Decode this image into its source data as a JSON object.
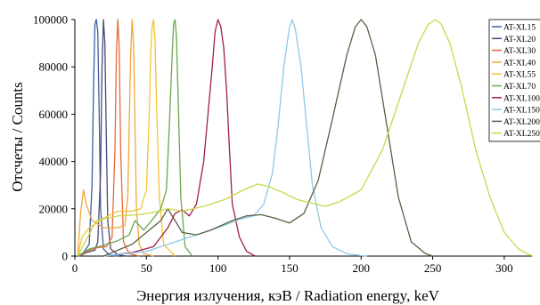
{
  "chart_data": {
    "type": "line",
    "xlabel": "Энергия излучения, кэВ / Radiation energy, keV",
    "ylabel": "Отсчеты  / Counts",
    "xlim": [
      0,
      320
    ],
    "ylim": [
      0,
      100000
    ],
    "x_ticks": [
      0,
      50,
      100,
      150,
      200,
      250,
      300
    ],
    "y_ticks": [
      0,
      20000,
      40000,
      60000,
      80000,
      100000
    ],
    "x_tick_labels": [
      "0",
      "50",
      "100",
      "150",
      "200",
      "250",
      "300"
    ],
    "y_tick_labels": [
      "0",
      "20000",
      "40000",
      "60000",
      "80000",
      "100000"
    ],
    "grid": false,
    "legend_position": "right",
    "series": [
      {
        "name": "AT-XL15",
        "color": "#3b5ea8",
        "x": [
          2,
          6,
          10,
          12,
          13,
          14,
          15,
          16,
          17,
          18,
          20,
          24,
          30
        ],
        "y": [
          0,
          1500,
          5000,
          30000,
          70000,
          98000,
          100000,
          95000,
          60000,
          20000,
          3000,
          500,
          0
        ]
      },
      {
        "name": "AT-XL20",
        "color": "#4a4a7a",
        "x": [
          3,
          8,
          14,
          16,
          18,
          19,
          20,
          21,
          22,
          23,
          25,
          30,
          36
        ],
        "y": [
          0,
          1500,
          2500,
          6000,
          35000,
          80000,
          100000,
          90000,
          50000,
          15000,
          3000,
          600,
          0
        ]
      },
      {
        "name": "AT-XL30",
        "color": "#e8693a",
        "x": [
          3,
          8,
          15,
          22,
          26,
          28,
          29,
          30,
          31,
          32,
          34,
          38,
          45
        ],
        "y": [
          0,
          2000,
          3500,
          4000,
          8000,
          45000,
          85000,
          100000,
          88000,
          45000,
          6000,
          1000,
          0
        ]
      },
      {
        "name": "AT-XL40",
        "color": "#f2a73a",
        "x": [
          2,
          4,
          6,
          8,
          12,
          20,
          30,
          35,
          37,
          38,
          39,
          40,
          41,
          42,
          43,
          45,
          48,
          55
        ],
        "y": [
          0,
          18000,
          28000,
          22000,
          15000,
          12000,
          12000,
          13000,
          25000,
          55000,
          85000,
          100000,
          90000,
          55000,
          20000,
          5000,
          1000,
          0
        ]
      },
      {
        "name": "AT-XL55",
        "color": "#f4c430",
        "x": [
          2,
          5,
          10,
          20,
          30,
          40,
          46,
          50,
          52,
          53,
          54,
          55,
          56,
          57,
          59,
          62,
          70
        ],
        "y": [
          0,
          8000,
          12000,
          16000,
          19000,
          19000,
          20000,
          28000,
          60000,
          85000,
          97000,
          100000,
          92000,
          65000,
          25000,
          5000,
          0
        ]
      },
      {
        "name": "AT-XL70",
        "color": "#6aa84f",
        "x": [
          2,
          10,
          20,
          30,
          38,
          42,
          48,
          55,
          60,
          64,
          66,
          68,
          69,
          70,
          71,
          72,
          74,
          77,
          82
        ],
        "y": [
          0,
          3000,
          4500,
          6500,
          9000,
          15000,
          11000,
          16000,
          20000,
          28000,
          55000,
          85000,
          98000,
          100000,
          93000,
          70000,
          25000,
          4000,
          0
        ]
      },
      {
        "name": "AT-XL100",
        "color": "#a0204a",
        "x": [
          20,
          40,
          55,
          65,
          70,
          75,
          80,
          85,
          90,
          93,
          96,
          98,
          100,
          102,
          104,
          106,
          108,
          110,
          115,
          120,
          126
        ],
        "y": [
          0,
          1500,
          4000,
          12000,
          18000,
          19500,
          17000,
          22000,
          40000,
          60000,
          80000,
          95000,
          100000,
          97000,
          88000,
          70000,
          45000,
          22000,
          8000,
          2000,
          0
        ]
      },
      {
        "name": "AT-XL150",
        "color": "#8ec9e8",
        "x": [
          20,
          50,
          80,
          100,
          115,
          125,
          132,
          138,
          142,
          146,
          150,
          152,
          154,
          158,
          162,
          166,
          172,
          180,
          190,
          200,
          204
        ],
        "y": [
          0,
          2000,
          8000,
          12000,
          15500,
          17000,
          22000,
          35000,
          55000,
          80000,
          97000,
          100000,
          96000,
          80000,
          55000,
          30000,
          12000,
          4000,
          1000,
          200,
          0
        ]
      },
      {
        "name": "AT-XL200",
        "color": "#5a5f40",
        "x": [
          20,
          40,
          60,
          65,
          75,
          85,
          95,
          110,
          120,
          130,
          140,
          150,
          160,
          170,
          180,
          190,
          196,
          200,
          204,
          210,
          218,
          226,
          235,
          245,
          250
        ],
        "y": [
          0,
          5000,
          15000,
          20000,
          10000,
          9000,
          11000,
          15000,
          17000,
          17500,
          16000,
          14000,
          18000,
          32000,
          58000,
          85000,
          97000,
          100000,
          97000,
          85000,
          55000,
          25000,
          6000,
          1000,
          0
        ]
      },
      {
        "name": "AT-XL250",
        "color": "#c8d84a",
        "x": [
          2,
          15,
          30,
          45,
          55,
          65,
          75,
          90,
          105,
          118,
          128,
          135,
          145,
          155,
          165,
          175,
          185,
          200,
          215,
          230,
          240,
          247,
          252,
          256,
          262,
          270,
          280,
          290,
          300,
          310,
          316,
          320
        ],
        "y": [
          0,
          15000,
          17000,
          17500,
          18500,
          20000,
          19000,
          21000,
          24000,
          28000,
          30500,
          29500,
          27000,
          24000,
          22500,
          21000,
          23000,
          28000,
          45000,
          72000,
          90000,
          98000,
          100000,
          98000,
          90000,
          72000,
          45000,
          25000,
          10000,
          3000,
          1000,
          0
        ]
      }
    ]
  }
}
